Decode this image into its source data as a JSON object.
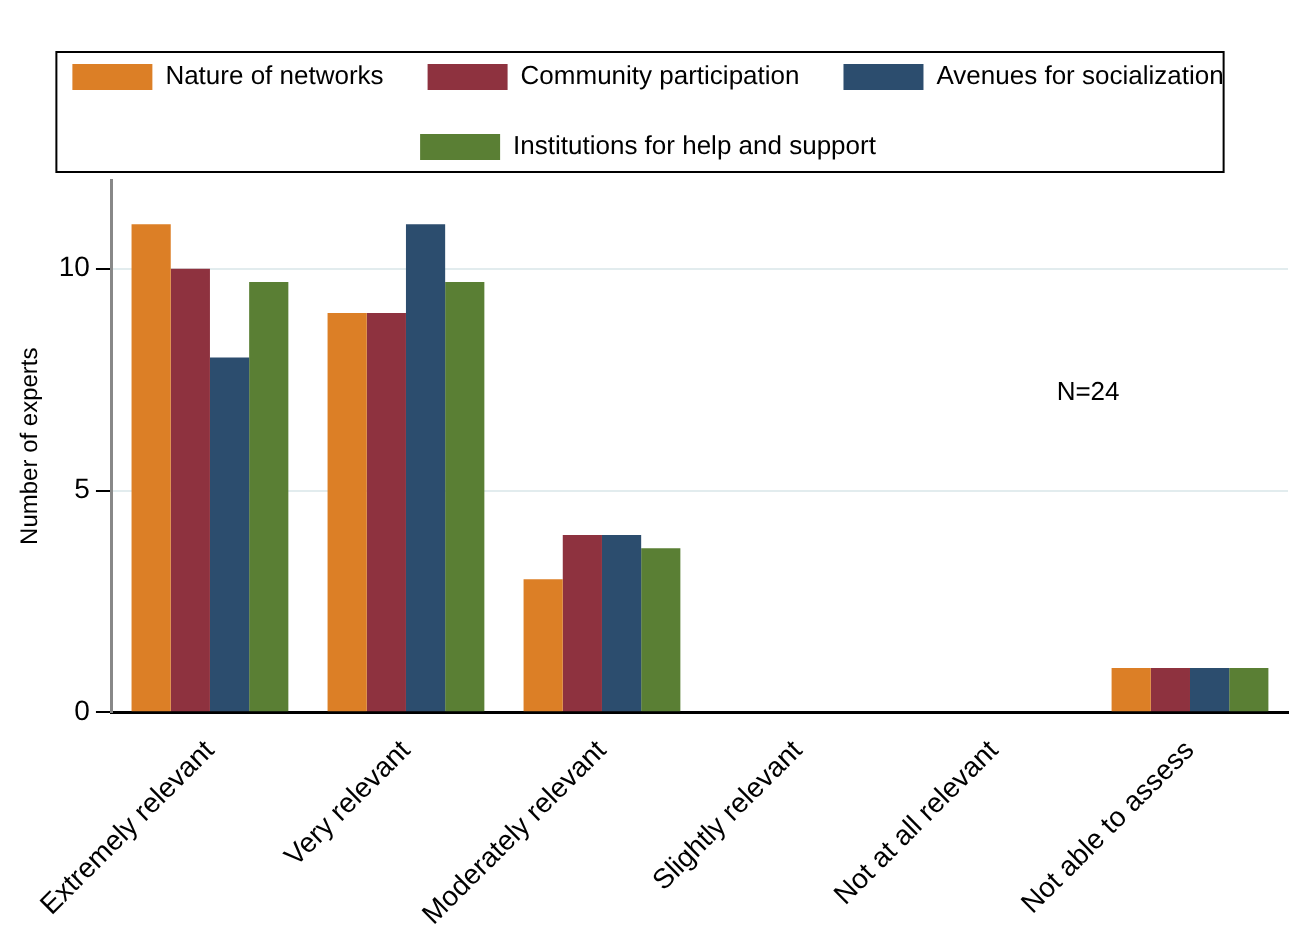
{
  "chart_data": {
    "type": "bar",
    "ylabel": "Number of experts",
    "categories": [
      "Extremely relevant",
      "Very relevant",
      "Moderately relevant",
      "Slightly relevant",
      "Not at all relevant",
      "Not able to assess"
    ],
    "series": [
      {
        "name": "Nature of networks",
        "color": "#dc7f26",
        "values": [
          11,
          9,
          3,
          0,
          0,
          1
        ]
      },
      {
        "name": "Community participation",
        "color": "#8e323f",
        "values": [
          10,
          9,
          4,
          0,
          0,
          1
        ]
      },
      {
        "name": "Avenues for socialization",
        "color": "#2c4d6e",
        "values": [
          8,
          11,
          4,
          0,
          0,
          1
        ]
      },
      {
        "name": "Institutions for help and support",
        "color": "#5a7f34",
        "values": [
          9.7,
          9.7,
          3.7,
          0,
          0,
          1
        ]
      }
    ],
    "ylim": [
      0,
      12
    ],
    "yticks": [
      0,
      5,
      10
    ],
    "grid": "y",
    "legend": "top",
    "annotations": [
      "N=24"
    ]
  }
}
